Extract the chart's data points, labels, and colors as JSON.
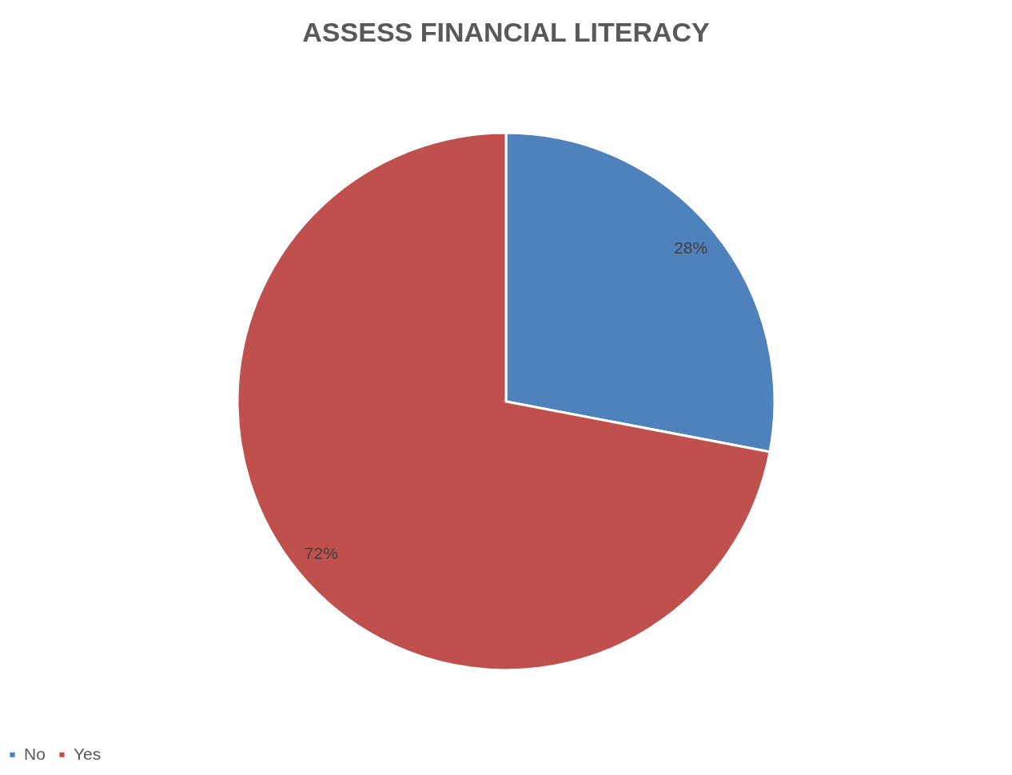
{
  "chart_data": {
    "type": "pie",
    "title": "ASSESS FINANCIAL LITERACY",
    "categories": [
      "No",
      "Yes"
    ],
    "values": [
      28,
      72
    ],
    "colors": [
      "#4f81bd",
      "#c0504d"
    ],
    "value_labels": [
      "28%",
      "72%"
    ],
    "legend": "bottom"
  }
}
